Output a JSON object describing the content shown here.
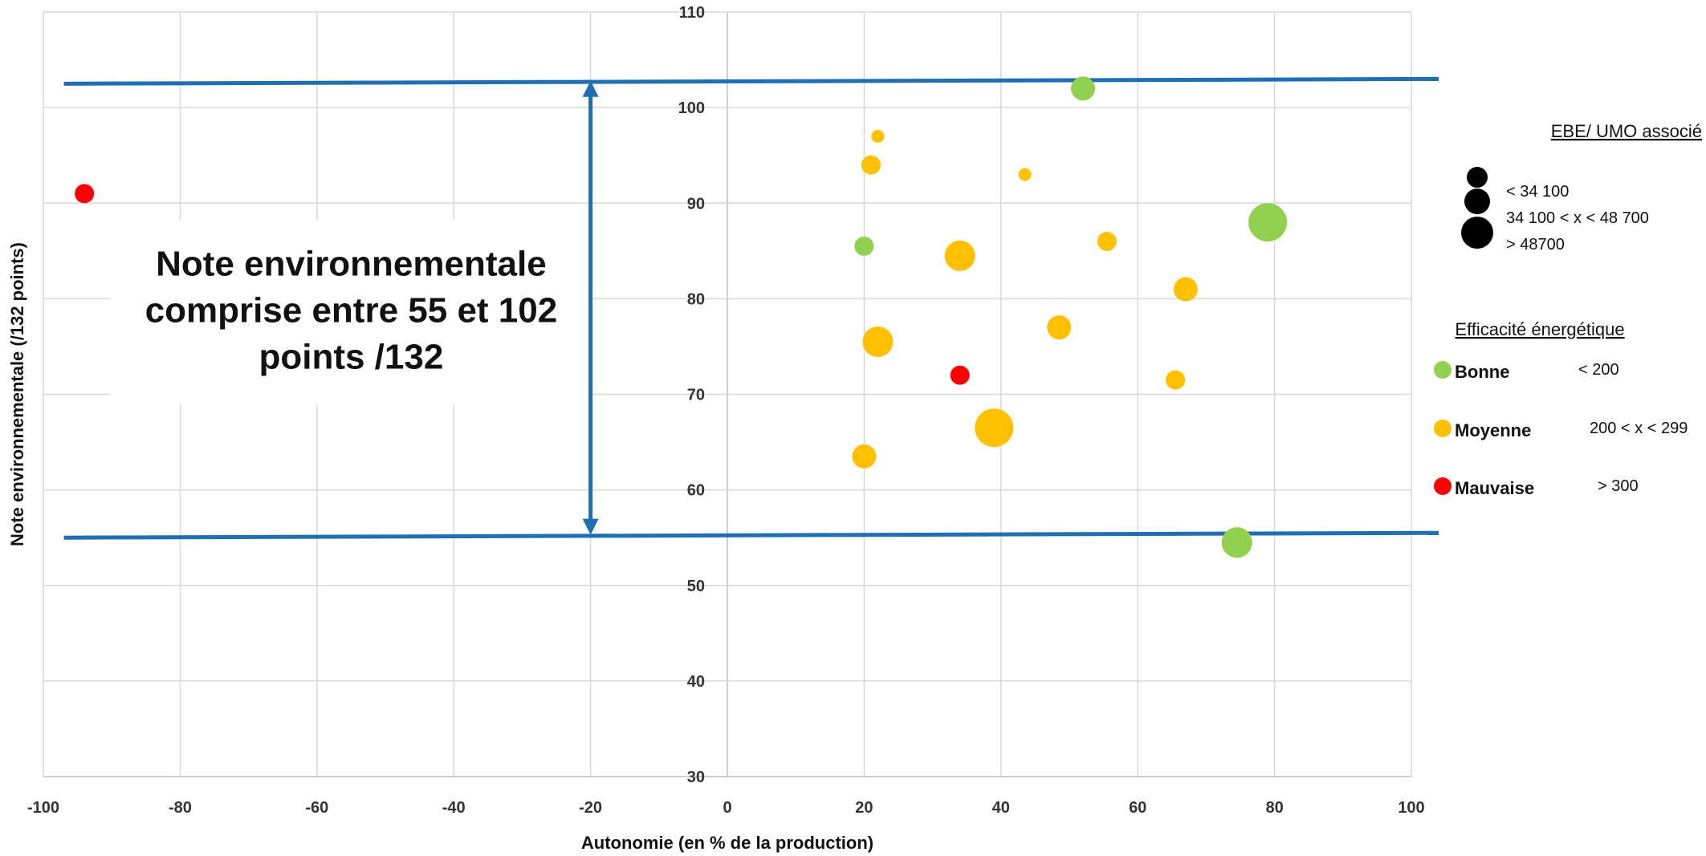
{
  "chart_data": {
    "type": "scatter",
    "title": "",
    "xlabel": "Autonomie (en % de la production)",
    "ylabel": "Note environnementale (/132 points)",
    "xlim": [
      -100,
      100
    ],
    "ylim": [
      30,
      110
    ],
    "xticks": [
      -100,
      -80,
      -60,
      -40,
      -20,
      0,
      20,
      40,
      60,
      80,
      100
    ],
    "yticks": [
      30,
      40,
      50,
      60,
      70,
      80,
      90,
      100,
      110
    ],
    "grid": true,
    "colors": {
      "bonne": "#92d050",
      "moyenne": "#ffc000",
      "mauvaise": "#ff0000",
      "line": "#1f6fb5"
    },
    "points": [
      {
        "x": -94,
        "y": 91,
        "size": 1,
        "category": "mauvaise"
      },
      {
        "x": 52,
        "y": 102,
        "size": 2,
        "category": "bonne"
      },
      {
        "x": 22,
        "y": 97,
        "size": 0,
        "category": "moyenne"
      },
      {
        "x": 21,
        "y": 94,
        "size": 1,
        "category": "moyenne"
      },
      {
        "x": 43.5,
        "y": 93,
        "size": 0,
        "category": "moyenne"
      },
      {
        "x": 79,
        "y": 88,
        "size": 4,
        "category": "bonne"
      },
      {
        "x": 55.5,
        "y": 86,
        "size": 1,
        "category": "moyenne"
      },
      {
        "x": 20,
        "y": 85.5,
        "size": 1,
        "category": "bonne"
      },
      {
        "x": 34,
        "y": 84.5,
        "size": 3,
        "category": "moyenne"
      },
      {
        "x": 67,
        "y": 81,
        "size": 2,
        "category": "moyenne"
      },
      {
        "x": 48.5,
        "y": 77,
        "size": 2,
        "category": "moyenne"
      },
      {
        "x": 22,
        "y": 75.5,
        "size": 3,
        "category": "moyenne"
      },
      {
        "x": 34,
        "y": 72,
        "size": 1,
        "category": "mauvaise"
      },
      {
        "x": 65.5,
        "y": 71.5,
        "size": 1,
        "category": "moyenne"
      },
      {
        "x": 39,
        "y": 66.5,
        "size": 4,
        "category": "moyenne"
      },
      {
        "x": 20,
        "y": 63.5,
        "size": 2,
        "category": "moyenne"
      },
      {
        "x": 74.5,
        "y": 54.5,
        "size": 3,
        "category": "bonne"
      }
    ],
    "reference_lines": [
      {
        "x1": -97,
        "y1": 102.5,
        "x2": 104,
        "y2": 103
      },
      {
        "x1": -97,
        "y1": 55,
        "x2": 104,
        "y2": 55.5
      }
    ],
    "arrow": {
      "x": -20,
      "y1": 102.8,
      "y2": 55.3
    },
    "annotation": {
      "lines": [
        "Note environnementale",
        "comprise entre 55 et 102",
        "points /132"
      ],
      "x": -55,
      "y": 79
    },
    "legend": {
      "position": "right",
      "size_title": "EBE/ UMO associé",
      "size_entries": [
        "< 34 100",
        "34 100 < x < 48 700",
        "> 48700"
      ],
      "color_title": "Efficacité énergétique",
      "color_entries": [
        {
          "label": "Bonne",
          "range": "< 200",
          "category": "bonne"
        },
        {
          "label": "Moyenne",
          "range": "200 < x < 299",
          "category": "moyenne"
        },
        {
          "label": "Mauvaise",
          "range": "> 300",
          "category": "mauvaise"
        }
      ]
    }
  }
}
